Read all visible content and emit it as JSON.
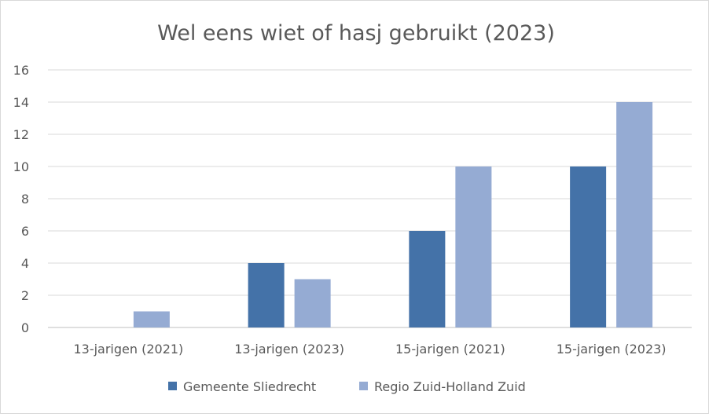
{
  "chart_data": {
    "type": "bar",
    "title": "Wel eens wiet of hasj gebruikt (2023)",
    "xlabel": "",
    "ylabel": "",
    "categories": [
      "13-jarigen (2021)",
      "13-jarigen (2023)",
      "15-jarigen (2021)",
      "15-jarigen (2023)"
    ],
    "series": [
      {
        "name": "Gemeente Sliedrecht",
        "color": "#4472a8",
        "values": [
          0,
          4,
          6,
          10
        ]
      },
      {
        "name": "Regio Zuid-Holland Zuid",
        "color": "#95abd3",
        "values": [
          1,
          3,
          10,
          14
        ]
      }
    ],
    "ylim": [
      0,
      16
    ],
    "yticks": [
      "0",
      "2",
      "4",
      "6",
      "8",
      "10",
      "12",
      "14",
      "16"
    ],
    "grid": true,
    "legend": "bottom"
  }
}
